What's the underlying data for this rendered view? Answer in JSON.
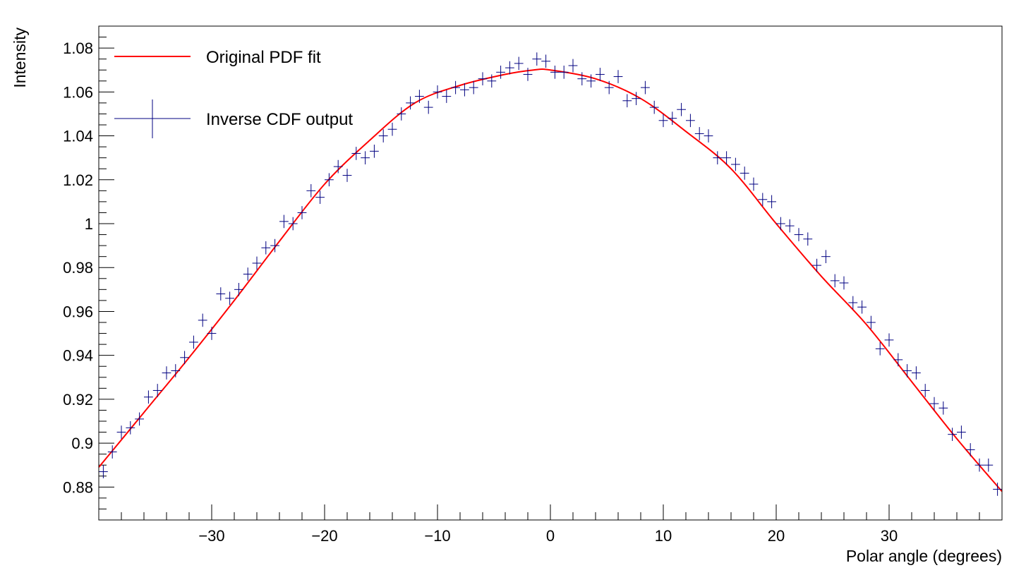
{
  "colors": {
    "fit_line": "#ff0000",
    "data_points": "#000080",
    "frame": "#000000",
    "background": "#ffffff"
  },
  "chart_data": {
    "type": "scatter",
    "title": "",
    "xlabel": "Polar angle (degrees)",
    "ylabel": "Intensity",
    "xlim": [
      -40,
      40
    ],
    "ylim": [
      0.865,
      1.09
    ],
    "x_ticks": [
      -30,
      -20,
      -10,
      0,
      10,
      20,
      30
    ],
    "x_tick_labels": [
      "−30",
      "−20",
      "−10",
      "0",
      "10",
      "20",
      "30"
    ],
    "y_ticks": [
      0.88,
      0.9,
      0.92,
      0.94,
      0.96,
      0.98,
      1.0,
      1.02,
      1.04,
      1.06,
      1.08
    ],
    "y_tick_labels": [
      "0.88",
      "0.9",
      "0.92",
      "0.94",
      "0.96",
      "0.98",
      "1",
      "1.02",
      "1.04",
      "1.06",
      "1.08"
    ],
    "grid": false,
    "legend_position": "top-left",
    "bin_width": 0.8,
    "series": [
      {
        "name": "Original PDF fit",
        "style": "line",
        "color": "#ff0000",
        "x": [
          -40,
          -36,
          -32,
          -28,
          -24,
          -20,
          -16,
          -12,
          -8,
          -4,
          -1.5,
          0,
          4,
          8,
          12,
          16,
          20,
          24,
          28,
          32,
          36,
          40
        ],
        "y": [
          0.889,
          0.914,
          0.939,
          0.965,
          0.992,
          1.018,
          1.038,
          1.055,
          1.063,
          1.068,
          1.07,
          1.07,
          1.066,
          1.057,
          1.042,
          1.025,
          1.0,
          0.976,
          0.954,
          0.928,
          0.902,
          0.878
        ]
      },
      {
        "name": "Inverse CDF output",
        "style": "crosses",
        "color": "#000080",
        "yerr": 0.003,
        "x": [
          -39.6,
          -38.8,
          -38.0,
          -37.2,
          -36.4,
          -35.6,
          -34.8,
          -34.0,
          -33.2,
          -32.4,
          -31.6,
          -30.8,
          -30.0,
          -29.2,
          -28.4,
          -27.6,
          -26.8,
          -26.0,
          -25.2,
          -24.4,
          -23.6,
          -22.8,
          -22.0,
          -21.2,
          -20.4,
          -19.6,
          -18.8,
          -18.0,
          -17.2,
          -16.4,
          -15.6,
          -14.8,
          -14.0,
          -13.2,
          -12.4,
          -11.6,
          -10.8,
          -10.0,
          -9.2,
          -8.4,
          -7.6,
          -6.8,
          -6.0,
          -5.2,
          -4.4,
          -3.6,
          -2.8,
          -2.0,
          -1.2,
          -0.4,
          0.4,
          1.2,
          2.0,
          2.8,
          3.6,
          4.4,
          5.2,
          6.0,
          6.8,
          7.6,
          8.4,
          9.2,
          10.0,
          10.8,
          11.6,
          12.4,
          13.2,
          14.0,
          14.8,
          15.6,
          16.4,
          17.2,
          18.0,
          18.8,
          19.6,
          20.4,
          21.2,
          22.0,
          22.8,
          23.6,
          24.4,
          25.2,
          26.0,
          26.8,
          27.6,
          28.4,
          29.2,
          30.0,
          30.8,
          31.6,
          32.4,
          33.2,
          34.0,
          34.8,
          35.6,
          36.4,
          37.2,
          38.0,
          38.8,
          39.6
        ],
        "y": [
          0.887,
          0.896,
          0.905,
          0.907,
          0.911,
          0.921,
          0.924,
          0.932,
          0.933,
          0.939,
          0.946,
          0.956,
          0.95,
          0.968,
          0.966,
          0.97,
          0.977,
          0.982,
          0.989,
          0.99,
          1.001,
          1.0,
          1.005,
          1.015,
          1.012,
          1.02,
          1.026,
          1.022,
          1.032,
          1.03,
          1.033,
          1.04,
          1.043,
          1.05,
          1.055,
          1.058,
          1.053,
          1.06,
          1.058,
          1.062,
          1.061,
          1.062,
          1.066,
          1.065,
          1.069,
          1.071,
          1.073,
          1.068,
          1.075,
          1.074,
          1.069,
          1.069,
          1.072,
          1.066,
          1.065,
          1.068,
          1.062,
          1.067,
          1.056,
          1.057,
          1.062,
          1.053,
          1.047,
          1.048,
          1.052,
          1.047,
          1.041,
          1.04,
          1.03,
          1.03,
          1.027,
          1.023,
          1.018,
          1.011,
          1.01,
          1.0,
          0.999,
          0.995,
          0.993,
          0.981,
          0.985,
          0.974,
          0.973,
          0.964,
          0.962,
          0.955,
          0.943,
          0.947,
          0.938,
          0.933,
          0.932,
          0.924,
          0.918,
          0.916,
          0.904,
          0.905,
          0.897,
          0.89,
          0.89,
          0.879
        ]
      }
    ]
  }
}
